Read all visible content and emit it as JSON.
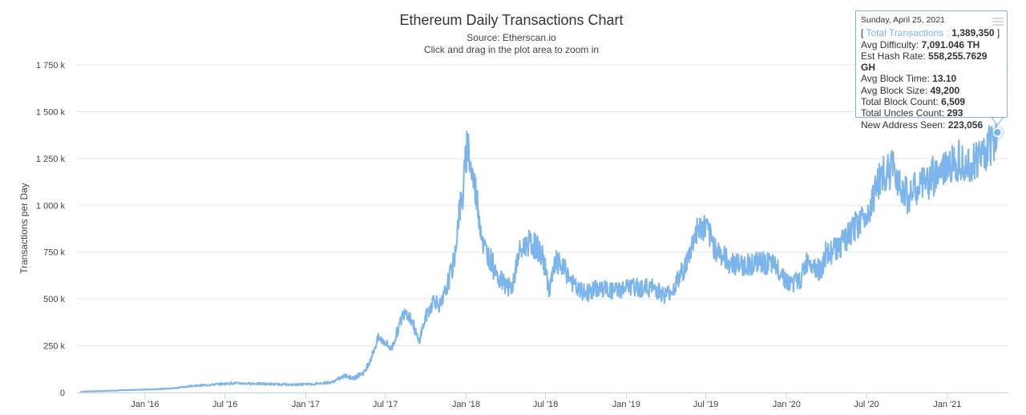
{
  "chart_data": {
    "type": "line",
    "title": "Ethereum Daily Transactions Chart",
    "subtitle": "Source: Etherscan.io",
    "subtitle2": "Click and drag in the plot area to zoom in",
    "ylabel": "Transactions per Day",
    "xlabel": "",
    "ylim": [
      0,
      1750000
    ],
    "y_ticks": [
      {
        "value": 0,
        "label": "0"
      },
      {
        "value": 250000,
        "label": "250 k"
      },
      {
        "value": 500000,
        "label": "500 k"
      },
      {
        "value": 750000,
        "label": "750 k"
      },
      {
        "value": 1000000,
        "label": "1 000 k"
      },
      {
        "value": 1250000,
        "label": "1 250 k"
      },
      {
        "value": 1500000,
        "label": "1 500 k"
      },
      {
        "value": 1750000,
        "label": "1 750 k"
      }
    ],
    "x_ticks": [
      {
        "date": "2016-01-01",
        "label": "Jan '16"
      },
      {
        "date": "2016-07-01",
        "label": "Jul '16"
      },
      {
        "date": "2017-01-01",
        "label": "Jan '17"
      },
      {
        "date": "2017-07-01",
        "label": "Jul '17"
      },
      {
        "date": "2018-01-01",
        "label": "Jan '18"
      },
      {
        "date": "2018-07-01",
        "label": "Jul '18"
      },
      {
        "date": "2019-01-01",
        "label": "Jan '19"
      },
      {
        "date": "2019-07-01",
        "label": "Jul '19"
      },
      {
        "date": "2020-01-01",
        "label": "Jan '20"
      },
      {
        "date": "2020-07-01",
        "label": "Jul '20"
      },
      {
        "date": "2021-01-01",
        "label": "Jan '21"
      }
    ],
    "xlim": [
      "2015-07-30",
      "2021-05-20"
    ],
    "grid": true,
    "series": [
      {
        "name": "Total Transactions",
        "color": "#7cb5ec",
        "points": [
          [
            "2015-08-07",
            5000
          ],
          [
            "2015-10-01",
            9000
          ],
          [
            "2015-12-01",
            14000
          ],
          [
            "2016-01-15",
            17000
          ],
          [
            "2016-03-01",
            22000
          ],
          [
            "2016-04-15",
            35000
          ],
          [
            "2016-06-01",
            42000
          ],
          [
            "2016-07-15",
            50000
          ],
          [
            "2016-09-01",
            48000
          ],
          [
            "2016-10-15",
            45000
          ],
          [
            "2016-12-01",
            42000
          ],
          [
            "2017-01-15",
            45000
          ],
          [
            "2017-03-01",
            55000
          ],
          [
            "2017-04-01",
            90000
          ],
          [
            "2017-04-20",
            75000
          ],
          [
            "2017-05-15",
            110000
          ],
          [
            "2017-06-01",
            200000
          ],
          [
            "2017-06-15",
            290000
          ],
          [
            "2017-07-01",
            270000
          ],
          [
            "2017-07-15",
            230000
          ],
          [
            "2017-08-01",
            350000
          ],
          [
            "2017-08-15",
            450000
          ],
          [
            "2017-09-01",
            380000
          ],
          [
            "2017-09-15",
            270000
          ],
          [
            "2017-10-01",
            400000
          ],
          [
            "2017-10-20",
            500000
          ],
          [
            "2017-11-05",
            460000
          ],
          [
            "2017-11-20",
            580000
          ],
          [
            "2017-12-05",
            700000
          ],
          [
            "2017-12-15",
            950000
          ],
          [
            "2017-12-25",
            1050000
          ],
          [
            "2018-01-04",
            1349890
          ],
          [
            "2018-01-12",
            1200000
          ],
          [
            "2018-01-25",
            1050000
          ],
          [
            "2018-02-10",
            780000
          ],
          [
            "2018-03-01",
            700000
          ],
          [
            "2018-03-20",
            600000
          ],
          [
            "2018-04-15",
            550000
          ],
          [
            "2018-05-01",
            740000
          ],
          [
            "2018-05-20",
            800000
          ],
          [
            "2018-06-10",
            780000
          ],
          [
            "2018-06-25",
            720000
          ],
          [
            "2018-07-10",
            550000
          ],
          [
            "2018-07-25",
            700000
          ],
          [
            "2018-08-15",
            650000
          ],
          [
            "2018-09-10",
            550000
          ],
          [
            "2018-10-01",
            530000
          ],
          [
            "2018-11-01",
            560000
          ],
          [
            "2018-12-01",
            540000
          ],
          [
            "2019-01-01",
            560000
          ],
          [
            "2019-02-01",
            560000
          ],
          [
            "2019-03-01",
            560000
          ],
          [
            "2019-04-01",
            520000
          ],
          [
            "2019-04-20",
            560000
          ],
          [
            "2019-05-20",
            700000
          ],
          [
            "2019-06-10",
            870000
          ],
          [
            "2019-07-01",
            880000
          ],
          [
            "2019-07-20",
            780000
          ],
          [
            "2019-08-20",
            700000
          ],
          [
            "2019-09-20",
            680000
          ],
          [
            "2019-10-20",
            690000
          ],
          [
            "2019-11-20",
            690000
          ],
          [
            "2019-12-20",
            650000
          ],
          [
            "2020-01-05",
            580000
          ],
          [
            "2020-02-01",
            600000
          ],
          [
            "2020-02-20",
            720000
          ],
          [
            "2020-03-15",
            650000
          ],
          [
            "2020-04-10",
            750000
          ],
          [
            "2020-05-10",
            800000
          ],
          [
            "2020-06-10",
            900000
          ],
          [
            "2020-07-01",
            950000
          ],
          [
            "2020-08-01",
            1150000
          ],
          [
            "2020-09-01",
            1200000
          ],
          [
            "2020-10-01",
            1050000
          ],
          [
            "2020-11-01",
            1100000
          ],
          [
            "2020-12-01",
            1150000
          ],
          [
            "2021-01-01",
            1200000
          ],
          [
            "2021-02-01",
            1250000
          ],
          [
            "2021-03-01",
            1230000
          ],
          [
            "2021-04-01",
            1300000
          ],
          [
            "2021-04-25",
            1389350
          ]
        ]
      }
    ],
    "highlight_point": {
      "date": "2021-04-25",
      "value": 1389350
    }
  },
  "tooltip": {
    "date": "Sunday, April 25, 2021",
    "rows": [
      {
        "label": "Total Transactions :",
        "value": "1,389,350"
      },
      {
        "label": "Avg Difficulty:",
        "value": "7,091.046 TH"
      },
      {
        "label": "Est Hash Rate:",
        "value": "558,255.7629 GH"
      },
      {
        "label": "Avg Block Time:",
        "value": "13.10"
      },
      {
        "label": "Avg Block Size:",
        "value": "49,200"
      },
      {
        "label": "Total Block Count:",
        "value": "6,509"
      },
      {
        "label": "Total Uncles Count:",
        "value": "293"
      },
      {
        "label": "New Address Seen:",
        "value": "223,056"
      }
    ]
  }
}
